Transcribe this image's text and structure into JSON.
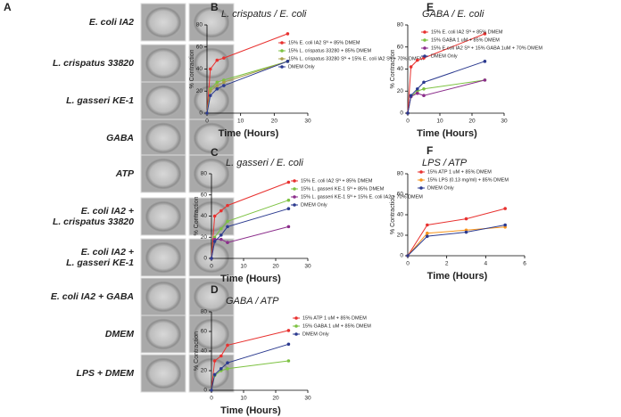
{
  "panel_a": {
    "label": "A",
    "rows": [
      [
        "E. coli IA2"
      ],
      [
        "L. crispatus 33820"
      ],
      [
        "L. gasseri KE-1"
      ],
      [
        "GABA"
      ],
      [
        "ATP"
      ],
      [
        "E. coli IA2 +",
        "L. crispatus 33820"
      ],
      [
        "E. coli IA2 +",
        "L. gasseri KE-1"
      ],
      [
        "E. coli IA2 + GABA"
      ],
      [
        "DMEM"
      ],
      [
        "LPS + DMEM"
      ]
    ]
  },
  "chart_data": [
    {
      "type": "line",
      "panel": "B",
      "title": "L. crispatus / E. coli",
      "x_label": "Time (Hours)",
      "y_label": "% Contraction",
      "x": [
        0,
        1,
        3,
        5,
        24
      ],
      "xlim": [
        0,
        30
      ],
      "xticks": [
        0,
        10,
        20,
        30
      ],
      "ylim": [
        0,
        80
      ],
      "yticks": [
        0,
        20,
        40,
        60,
        80
      ],
      "series": [
        {
          "name": "15% E. coli IA2 Sᴺ + 85% DMEM",
          "color": "#e8312f",
          "values": [
            0,
            40,
            48,
            50,
            72
          ]
        },
        {
          "name": "15% L. crispatus 33280 + 85% DMEM",
          "color": "#7dc242",
          "values": [
            0,
            22,
            28,
            30,
            47
          ]
        },
        {
          "name": "15% L. crispatus 33280 Sᴺ + 15% E. coli IA2 Sᴺ + 70% DMEM",
          "color": "#a8a04a",
          "values": [
            0,
            20,
            25,
            28,
            47
          ]
        },
        {
          "name": "DMEM Only",
          "color": "#2b3a8f",
          "values": [
            0,
            16,
            22,
            25,
            47
          ]
        }
      ]
    },
    {
      "type": "line",
      "panel": "C",
      "title": "L. gasseri / E. coli",
      "x_label": "Time (Hours)",
      "y_label": "% Contraction",
      "x": [
        0,
        1,
        3,
        5,
        24
      ],
      "xlim": [
        0,
        30
      ],
      "xticks": [
        0,
        10,
        20,
        30
      ],
      "ylim": [
        0,
        80
      ],
      "yticks": [
        0,
        20,
        40,
        60,
        80
      ],
      "series": [
        {
          "name": "15% E. coli IA2 Sᴺ + 85% DMEM",
          "color": "#e8312f",
          "values": [
            0,
            40,
            45,
            50,
            72
          ]
        },
        {
          "name": "15% L. gasseri KE-1 Sᴺ + 85% DMEM",
          "color": "#7dc242",
          "values": [
            0,
            20,
            28,
            35,
            55
          ]
        },
        {
          "name": "15% L. gasseri KE-1 Sᴺ + 15% E. coli IA2 + 70% DMEM",
          "color": "#8b2d8b",
          "values": [
            0,
            18,
            18,
            15,
            30
          ]
        },
        {
          "name": "DMEM Only",
          "color": "#2b3a8f",
          "values": [
            0,
            16,
            22,
            30,
            47
          ]
        }
      ]
    },
    {
      "type": "line",
      "panel": "D",
      "title": "GABA / ATP",
      "x_label": "Time (Hours)",
      "y_label": "% Contraction",
      "x": [
        0,
        1,
        3,
        5,
        24
      ],
      "xlim": [
        0,
        30
      ],
      "xticks": [
        0,
        10,
        20,
        30
      ],
      "ylim": [
        0,
        80
      ],
      "yticks": [
        0,
        20,
        40,
        60,
        80
      ],
      "series": [
        {
          "name": "15% ATP 1 uM + 85% DMEM",
          "color": "#e8312f",
          "values": [
            0,
            30,
            35,
            46,
            61
          ]
        },
        {
          "name": "15% GABA 1 uM + 85% DMEM",
          "color": "#7dc242",
          "values": [
            0,
            15,
            20,
            22,
            30
          ]
        },
        {
          "name": "DMEM Only",
          "color": "#2b3a8f",
          "values": [
            0,
            16,
            22,
            28,
            47
          ]
        }
      ]
    },
    {
      "type": "line",
      "panel": "E",
      "title": "GABA / E. coli",
      "x_label": "Time (Hours)",
      "y_label": "% Contraction",
      "x": [
        0,
        1,
        3,
        5,
        24
      ],
      "xlim": [
        0,
        30
      ],
      "xticks": [
        0,
        10,
        20,
        30
      ],
      "ylim": [
        0,
        80
      ],
      "yticks": [
        0,
        20,
        40,
        60,
        80
      ],
      "series": [
        {
          "name": "15% E. coli IA2 Sᴺ + 85% DMEM",
          "color": "#e8312f",
          "values": [
            0,
            42,
            48,
            50,
            72
          ]
        },
        {
          "name": "15% GABA 1 uM + 85% DMEM",
          "color": "#7dc242",
          "values": [
            0,
            15,
            20,
            22,
            30
          ]
        },
        {
          "name": "15% E.coli IA2 Sᴺ + 15% GABA 1uM + 70% DMEM",
          "color": "#8b2d8b",
          "values": [
            0,
            15,
            18,
            16,
            30
          ]
        },
        {
          "name": "DMEM Only",
          "color": "#2b3a8f",
          "values": [
            0,
            16,
            22,
            28,
            47
          ]
        }
      ]
    },
    {
      "type": "line",
      "panel": "F",
      "title": "LPS / ATP",
      "x_label": "Time (Hours)",
      "y_label": "% Contraction",
      "x": [
        0,
        1,
        3,
        5
      ],
      "xlim": [
        0,
        6
      ],
      "xticks": [
        0,
        2,
        4,
        6
      ],
      "ylim": [
        0,
        80
      ],
      "yticks": [
        0,
        20,
        40,
        60,
        80
      ],
      "series": [
        {
          "name": "15% ATP 1 uM + 85% DMEM",
          "color": "#e8312f",
          "values": [
            0,
            30,
            36,
            46
          ]
        },
        {
          "name": "15% LPS (0.13 mg/ml) + 85% DMEM",
          "color": "#f7941d",
          "values": [
            0,
            22,
            25,
            28
          ]
        },
        {
          "name": "DMEM Only",
          "color": "#2b3a8f",
          "values": [
            0,
            19,
            23,
            30
          ]
        }
      ]
    }
  ]
}
